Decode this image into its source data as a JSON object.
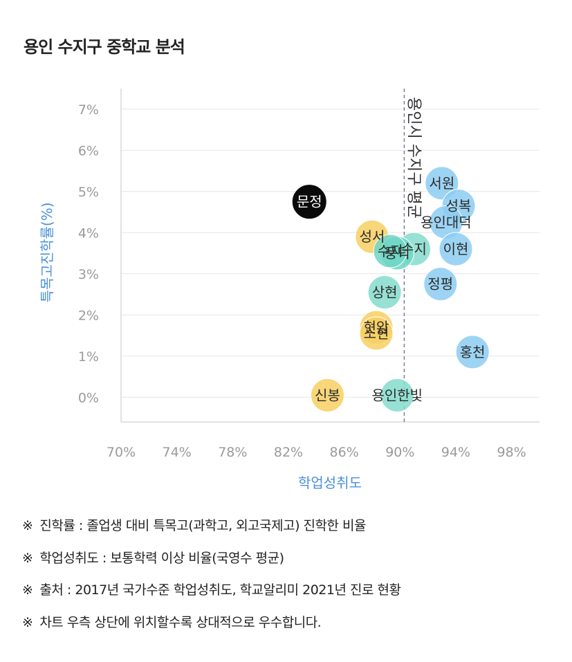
{
  "title": "용인 수지구 중학교 분석",
  "chart_data": {
    "type": "scatter",
    "xlabel": "학업성취도",
    "ylabel": "특목고진학률(%)",
    "xlim": [
      70,
      100
    ],
    "ylim": [
      -0.6,
      7.5
    ],
    "xticks": [
      "70%",
      "74%",
      "78%",
      "82%",
      "86%",
      "90%",
      "94%",
      "98%"
    ],
    "xtick_values": [
      70,
      74,
      78,
      82,
      86,
      90,
      94,
      98
    ],
    "yticks": [
      "0%",
      "1%",
      "2%",
      "3%",
      "4%",
      "5%",
      "6%",
      "7%"
    ],
    "ytick_values": [
      0,
      1,
      2,
      3,
      4,
      5,
      6,
      7
    ],
    "grid": true,
    "reference_line": {
      "x": 90.3,
      "label": "용인시 수지구 평균"
    },
    "points": [
      {
        "label": "문정",
        "x": 83.5,
        "y": 4.75,
        "color": "#0a0a0a"
      },
      {
        "label": "서원",
        "x": 93.0,
        "y": 5.2,
        "color": "#8ccdf1"
      },
      {
        "label": "성복",
        "x": 94.2,
        "y": 4.65,
        "color": "#8ccdf1"
      },
      {
        "label": "용인대덕",
        "x": 93.3,
        "y": 4.25,
        "color": "#8ccdf1"
      },
      {
        "label": "이현",
        "x": 94.0,
        "y": 3.6,
        "color": "#8ccdf1"
      },
      {
        "label": "정평",
        "x": 92.9,
        "y": 2.75,
        "color": "#8ccdf1"
      },
      {
        "label": "홍천",
        "x": 95.2,
        "y": 1.1,
        "color": "#8ccdf1"
      },
      {
        "label": "성서",
        "x": 88.0,
        "y": 3.9,
        "color": "#f7cf62"
      },
      {
        "label": "수지",
        "x": 91.0,
        "y": 3.6,
        "color": "#84dccc"
      },
      {
        "label": "풍덕",
        "x": 89.8,
        "y": 3.5,
        "color": "#6fd6c6"
      },
      {
        "label": "수지",
        "x": 89.3,
        "y": 3.55,
        "color": "#6fd6c6"
      },
      {
        "label": "상현",
        "x": 88.9,
        "y": 2.55,
        "color": "#84dccc"
      },
      {
        "label": "현암",
        "x": 88.3,
        "y": 1.7,
        "color": "#f7cf62"
      },
      {
        "label": "소현",
        "x": 88.3,
        "y": 1.55,
        "color": "#f7cf62"
      },
      {
        "label": "신봉",
        "x": 84.8,
        "y": 0.05,
        "color": "#f7cf62"
      },
      {
        "label": "용인한빛",
        "x": 89.8,
        "y": 0.05,
        "color": "#84dccc"
      }
    ]
  },
  "notes": [
    {
      "mark": "※",
      "text": "진학률 : 졸업생 대비 특목고(과학고, 외고국제고) 진학한 비율"
    },
    {
      "mark": "※",
      "text": "학업성취도 : 보통학력 이상 비율(국영수 평균)"
    },
    {
      "mark": "※",
      "text": "출처 : 2017년 국가수준 학업성취도, 학교알리미 2021년 진로 현황"
    },
    {
      "mark": "※",
      "text": "차트 우측 상단에 위치할수록 상대적으로 우수합니다."
    }
  ]
}
